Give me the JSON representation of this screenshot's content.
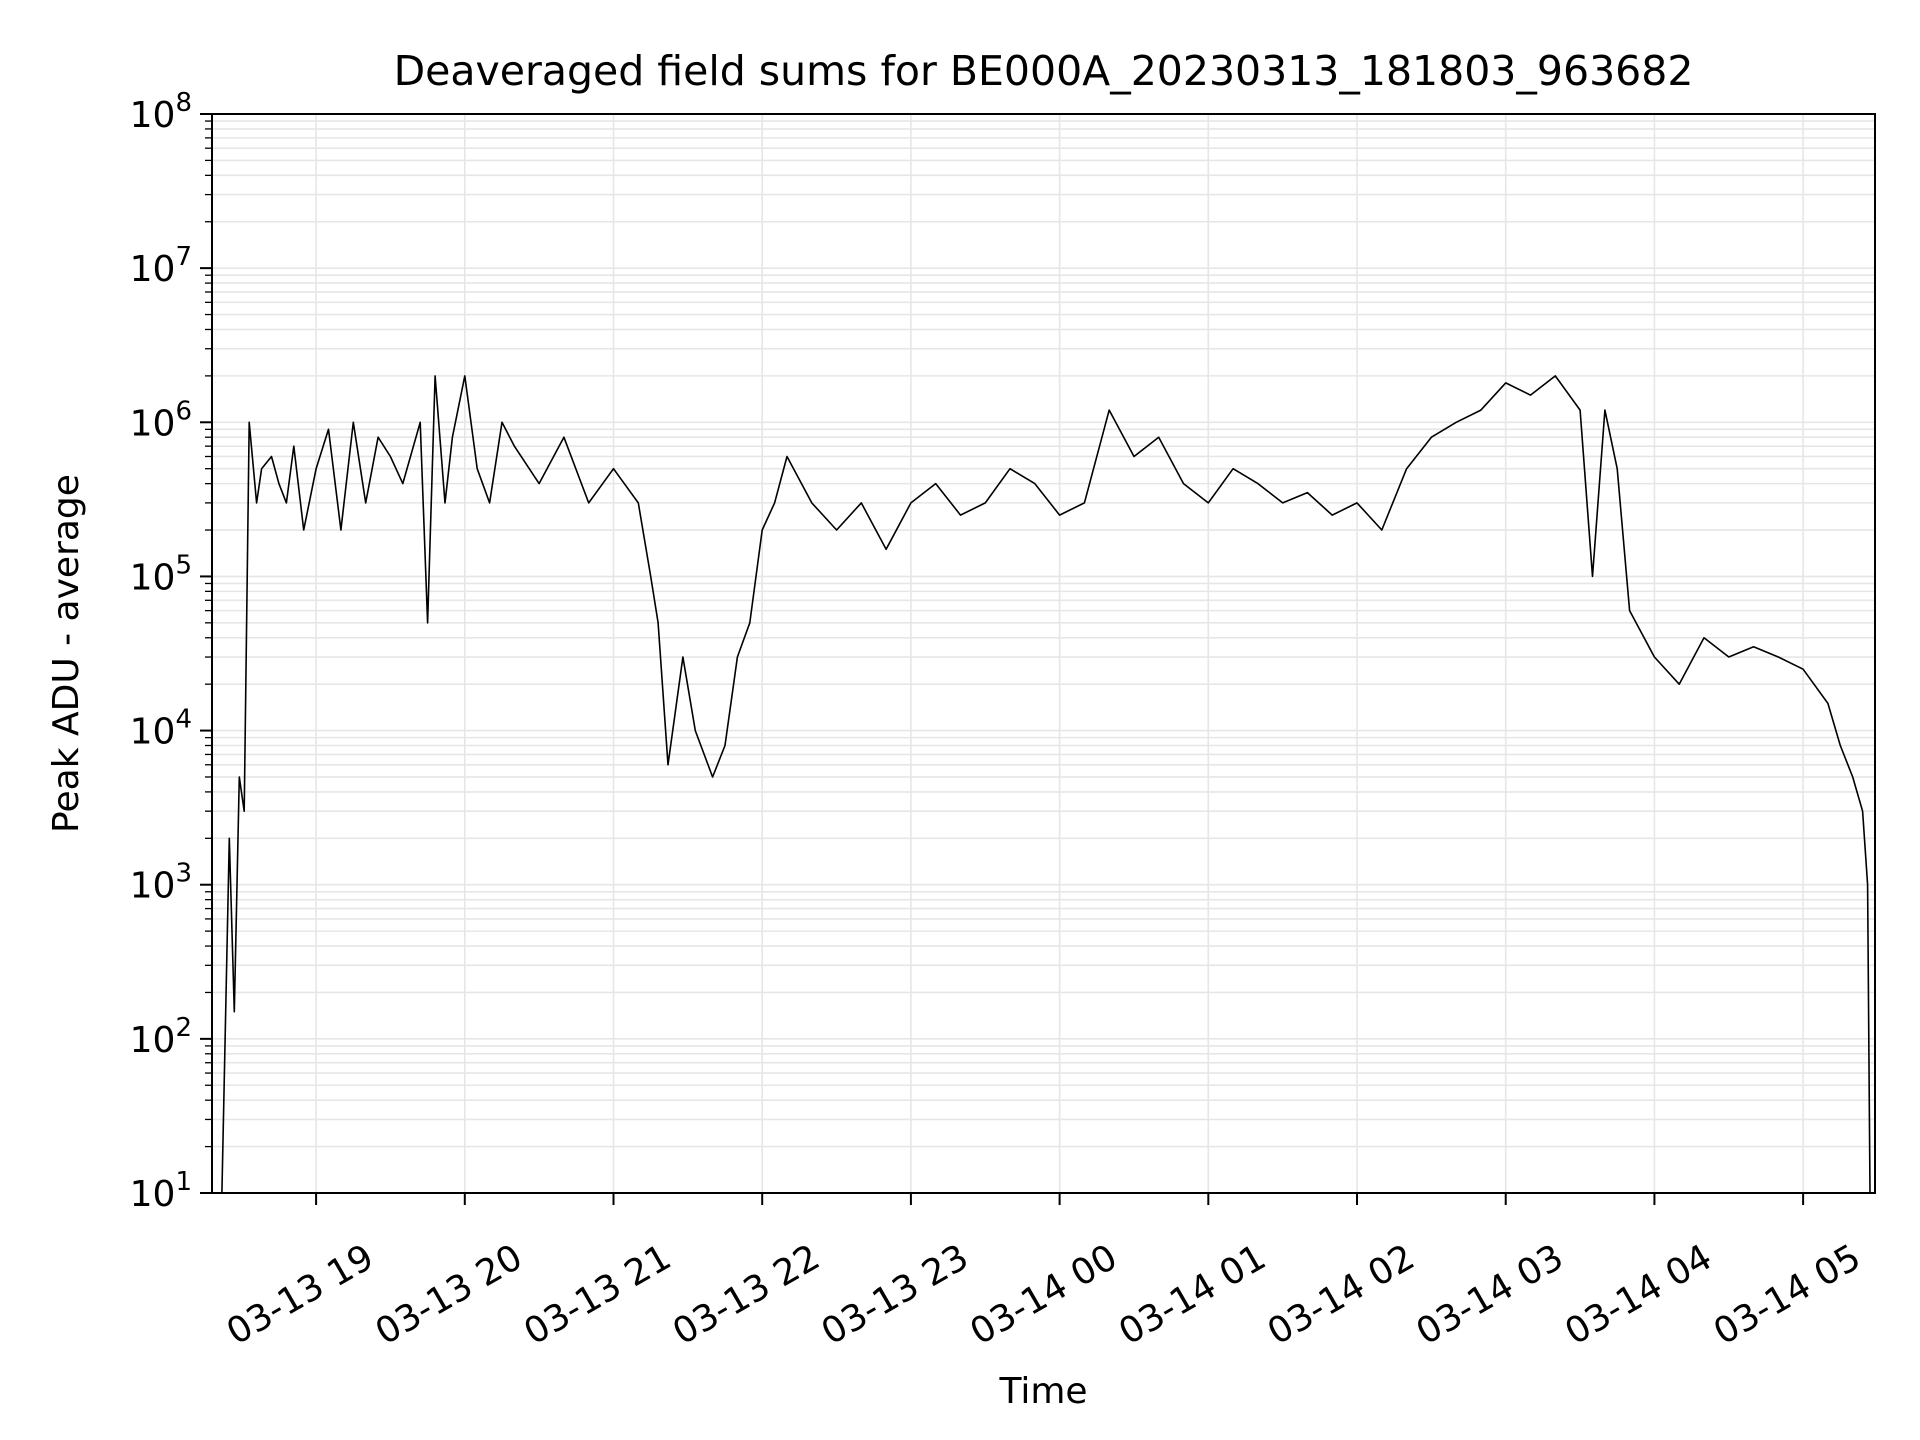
{
  "chart_data": {
    "type": "line",
    "title": "Deaveraged field sums for BE000A_20230313_181803_963682",
    "xlabel": "Time",
    "ylabel": "Peak ADU - average",
    "yscale": "log",
    "ylim": [
      10,
      100000000
    ],
    "xlim": [
      "2023-03-13 18:18",
      "2023-03-14 05:29"
    ],
    "grid": true,
    "line_color": "#000000",
    "grid_color": "#e6e6e6",
    "x_ticks": [
      {
        "t": "2023-03-13 19:00",
        "label": "03-13 19"
      },
      {
        "t": "2023-03-13 20:00",
        "label": "03-13 20"
      },
      {
        "t": "2023-03-13 21:00",
        "label": "03-13 21"
      },
      {
        "t": "2023-03-13 22:00",
        "label": "03-13 22"
      },
      {
        "t": "2023-03-13 23:00",
        "label": "03-13 23"
      },
      {
        "t": "2023-03-14 00:00",
        "label": "03-14 00"
      },
      {
        "t": "2023-03-14 01:00",
        "label": "03-14 01"
      },
      {
        "t": "2023-03-14 02:00",
        "label": "03-14 02"
      },
      {
        "t": "2023-03-14 03:00",
        "label": "03-14 03"
      },
      {
        "t": "2023-03-14 04:00",
        "label": "03-14 04"
      },
      {
        "t": "2023-03-14 05:00",
        "label": "03-14 05"
      }
    ],
    "y_ticks": [
      {
        "value": 10,
        "base": "10",
        "exp": "1"
      },
      {
        "value": 100,
        "base": "10",
        "exp": "2"
      },
      {
        "value": 1000,
        "base": "10",
        "exp": "3"
      },
      {
        "value": 10000,
        "base": "10",
        "exp": "4"
      },
      {
        "value": 100000,
        "base": "10",
        "exp": "5"
      },
      {
        "value": 1000000,
        "base": "10",
        "exp": "6"
      },
      {
        "value": 10000000,
        "base": "10",
        "exp": "7"
      },
      {
        "value": 100000000,
        "base": "10",
        "exp": "8"
      }
    ],
    "series": [
      {
        "x": [
          "2023-03-13 18:22",
          "2023-03-13 18:25",
          "2023-03-13 18:27",
          "2023-03-13 18:29",
          "2023-03-13 18:31",
          "2023-03-13 18:33",
          "2023-03-13 18:36",
          "2023-03-13 18:38",
          "2023-03-13 18:42",
          "2023-03-13 18:45",
          "2023-03-13 18:48",
          "2023-03-13 18:51",
          "2023-03-13 18:55",
          "2023-03-13 19:00",
          "2023-03-13 19:05",
          "2023-03-13 19:10",
          "2023-03-13 19:15",
          "2023-03-13 19:20",
          "2023-03-13 19:25",
          "2023-03-13 19:30",
          "2023-03-13 19:35",
          "2023-03-13 19:42",
          "2023-03-13 19:45",
          "2023-03-13 19:48",
          "2023-03-13 19:52",
          "2023-03-13 19:55",
          "2023-03-13 20:00",
          "2023-03-13 20:05",
          "2023-03-13 20:10",
          "2023-03-13 20:15",
          "2023-03-13 20:20",
          "2023-03-13 20:30",
          "2023-03-13 20:40",
          "2023-03-13 20:50",
          "2023-03-13 21:00",
          "2023-03-13 21:10",
          "2023-03-13 21:15",
          "2023-03-13 21:18",
          "2023-03-13 21:22",
          "2023-03-13 21:28",
          "2023-03-13 21:33",
          "2023-03-13 21:40",
          "2023-03-13 21:45",
          "2023-03-13 21:50",
          "2023-03-13 21:55",
          "2023-03-13 22:00",
          "2023-03-13 22:05",
          "2023-03-13 22:10",
          "2023-03-13 22:20",
          "2023-03-13 22:30",
          "2023-03-13 22:40",
          "2023-03-13 22:50",
          "2023-03-13 23:00",
          "2023-03-13 23:10",
          "2023-03-13 23:20",
          "2023-03-13 23:30",
          "2023-03-13 23:40",
          "2023-03-13 23:50",
          "2023-03-14 00:00",
          "2023-03-14 00:10",
          "2023-03-14 00:20",
          "2023-03-14 00:30",
          "2023-03-14 00:40",
          "2023-03-14 00:50",
          "2023-03-14 01:00",
          "2023-03-14 01:10",
          "2023-03-14 01:20",
          "2023-03-14 01:30",
          "2023-03-14 01:40",
          "2023-03-14 01:50",
          "2023-03-14 02:00",
          "2023-03-14 02:10",
          "2023-03-14 02:20",
          "2023-03-14 02:30",
          "2023-03-14 02:40",
          "2023-03-14 02:50",
          "2023-03-14 03:00",
          "2023-03-14 03:10",
          "2023-03-14 03:20",
          "2023-03-14 03:30",
          "2023-03-14 03:35",
          "2023-03-14 03:40",
          "2023-03-14 03:45",
          "2023-03-14 03:50",
          "2023-03-14 04:00",
          "2023-03-14 04:10",
          "2023-03-14 04:20",
          "2023-03-14 04:30",
          "2023-03-14 04:40",
          "2023-03-14 04:50",
          "2023-03-14 05:00",
          "2023-03-14 05:10",
          "2023-03-14 05:15",
          "2023-03-14 05:20",
          "2023-03-14 05:24",
          "2023-03-14 05:26",
          "2023-03-14 05:27"
        ],
        "y": [
          10,
          2000,
          150,
          5000,
          3000,
          1000000,
          300000,
          500000,
          600000,
          400000,
          300000,
          700000,
          200000,
          500000,
          900000,
          200000,
          1000000,
          300000,
          800000,
          600000,
          400000,
          1000000,
          50000,
          2000000,
          300000,
          800000,
          2000000,
          500000,
          300000,
          1000000,
          700000,
          400000,
          800000,
          300000,
          500000,
          300000,
          100000,
          50000,
          6000,
          30000,
          10000,
          5000,
          8000,
          30000,
          50000,
          200000,
          300000,
          600000,
          300000,
          200000,
          300000,
          150000,
          300000,
          400000,
          250000,
          300000,
          500000,
          400000,
          250000,
          300000,
          1200000,
          600000,
          800000,
          400000,
          300000,
          500000,
          400000,
          300000,
          350000,
          250000,
          300000,
          200000,
          500000,
          800000,
          1000000,
          1200000,
          1800000,
          1500000,
          2000000,
          1200000,
          100000,
          1200000,
          500000,
          60000,
          30000,
          20000,
          40000,
          30000,
          35000,
          30000,
          25000,
          15000,
          8000,
          5000,
          3000,
          1000,
          10
        ]
      }
    ]
  }
}
